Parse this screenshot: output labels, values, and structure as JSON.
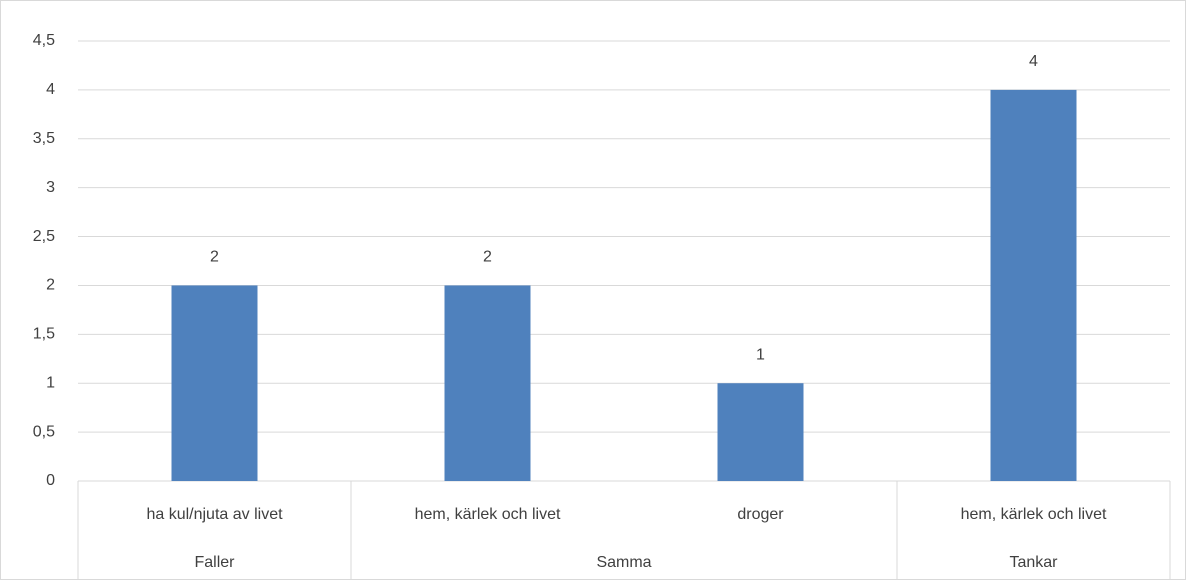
{
  "chart_data": {
    "type": "bar",
    "categories": [
      "ha kul/njuta av livet",
      "hem, kärlek och livet",
      "droger",
      "hem, kärlek och livet"
    ],
    "groups": [
      "Faller",
      "Samma",
      "Samma",
      "Tankar"
    ],
    "values": [
      2,
      2,
      1,
      4
    ],
    "color": "#4f81bd",
    "ylim": [
      0,
      4.5
    ],
    "yticks": [
      0,
      {
        "value": 0.5,
        "label": "0,5"
      },
      1,
      {
        "value": 1.5,
        "label": "1,5"
      },
      2,
      {
        "value": 2.5,
        "label": "2,5"
      },
      3,
      {
        "value": 3.5,
        "label": "3,5"
      },
      4,
      {
        "value": 4.5,
        "label": "4,5"
      }
    ],
    "grid": true
  }
}
